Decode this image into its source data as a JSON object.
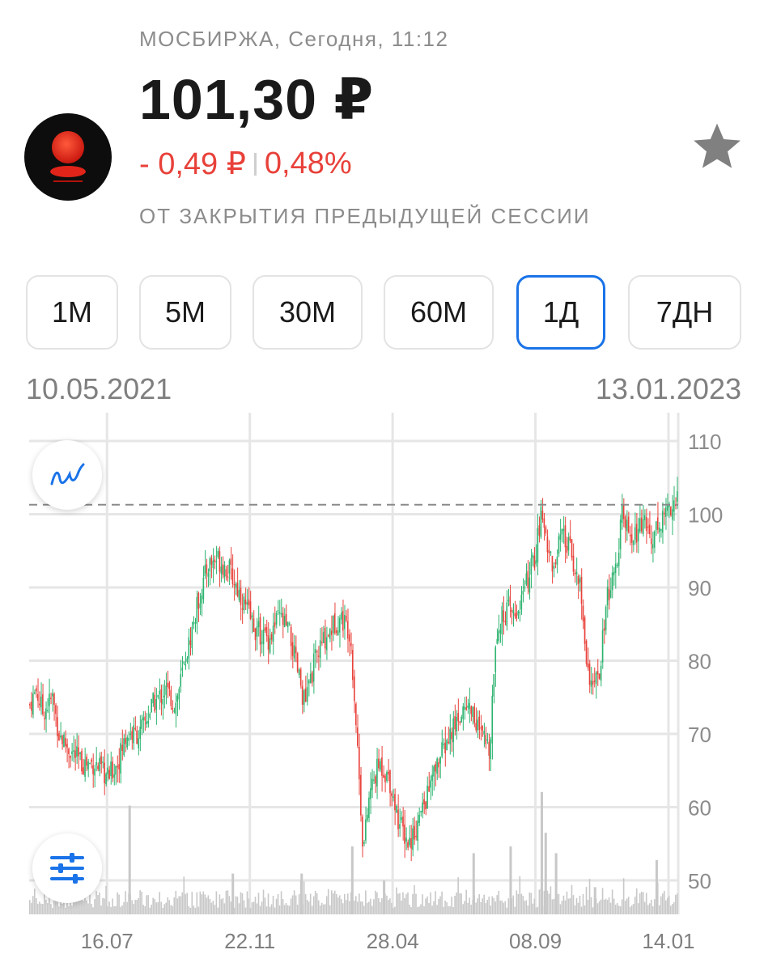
{
  "header": {
    "exchange": "МОСБИРЖА, Сегодня, 11:12",
    "price": "101,30 ₽",
    "change_abs": "- 0,49 ₽",
    "change_pct": "0,48%",
    "session_note": "ОТ ЗАКРЫТИЯ ПРЕДЫДУЩЕЙ СЕССИИ"
  },
  "icons": {
    "logo": "company-logo-icon",
    "favorite": "star-icon",
    "chart_type": "line-chart-icon",
    "settings": "sliders-icon"
  },
  "colors": {
    "up": "#2db36f",
    "down": "#e8413a",
    "accent": "#1a73e8",
    "volume": "#c8c8c8",
    "grid": "#e6e6e6",
    "muted": "#8c8c8c"
  },
  "period_tabs": [
    {
      "label": "1М",
      "active": false
    },
    {
      "label": "5М",
      "active": false
    },
    {
      "label": "30М",
      "active": false
    },
    {
      "label": "60М",
      "active": false
    },
    {
      "label": "1Д",
      "active": true
    },
    {
      "label": "7ДН",
      "active": false
    }
  ],
  "range": {
    "start": "10.05.2021",
    "end": "13.01.2023"
  },
  "chart_data": {
    "type": "candlestick",
    "ylim": [
      45,
      112
    ],
    "y_ticks": [
      110,
      100,
      90,
      80,
      70,
      60,
      50
    ],
    "x_tick_labels": [
      "16.07",
      "22.11",
      "28.04",
      "08.09",
      "14.01"
    ],
    "x_tick_positions": [
      0.12,
      0.34,
      0.56,
      0.78,
      0.985
    ],
    "current_price": 101.3,
    "grid": true,
    "close_path": [
      [
        0.0,
        74
      ],
      [
        0.01,
        76
      ],
      [
        0.02,
        73
      ],
      [
        0.035,
        75
      ],
      [
        0.045,
        70
      ],
      [
        0.06,
        68
      ],
      [
        0.08,
        66
      ],
      [
        0.1,
        66
      ],
      [
        0.12,
        64
      ],
      [
        0.135,
        66
      ],
      [
        0.15,
        70
      ],
      [
        0.17,
        70
      ],
      [
        0.19,
        74
      ],
      [
        0.21,
        76
      ],
      [
        0.225,
        74
      ],
      [
        0.24,
        80
      ],
      [
        0.26,
        88
      ],
      [
        0.275,
        93
      ],
      [
        0.29,
        94
      ],
      [
        0.31,
        92
      ],
      [
        0.33,
        88
      ],
      [
        0.35,
        84
      ],
      [
        0.37,
        83
      ],
      [
        0.385,
        86
      ],
      [
        0.4,
        84
      ],
      [
        0.415,
        78
      ],
      [
        0.425,
        74
      ],
      [
        0.44,
        80
      ],
      [
        0.455,
        83
      ],
      [
        0.47,
        85
      ],
      [
        0.48,
        86
      ],
      [
        0.495,
        84
      ],
      [
        0.505,
        70
      ],
      [
        0.515,
        54
      ],
      [
        0.525,
        62
      ],
      [
        0.54,
        66
      ],
      [
        0.555,
        64
      ],
      [
        0.57,
        58
      ],
      [
        0.585,
        55
      ],
      [
        0.6,
        58
      ],
      [
        0.615,
        62
      ],
      [
        0.63,
        66
      ],
      [
        0.645,
        69
      ],
      [
        0.66,
        72
      ],
      [
        0.675,
        74
      ],
      [
        0.685,
        73
      ],
      [
        0.695,
        70
      ],
      [
        0.71,
        68
      ],
      [
        0.72,
        84
      ],
      [
        0.735,
        87
      ],
      [
        0.75,
        86
      ],
      [
        0.765,
        90
      ],
      [
        0.78,
        94
      ],
      [
        0.79,
        100
      ],
      [
        0.8,
        96
      ],
      [
        0.81,
        92
      ],
      [
        0.82,
        97
      ],
      [
        0.835,
        95
      ],
      [
        0.85,
        90
      ],
      [
        0.86,
        80
      ],
      [
        0.87,
        76
      ],
      [
        0.88,
        78
      ],
      [
        0.89,
        88
      ],
      [
        0.905,
        92
      ],
      [
        0.915,
        100
      ],
      [
        0.93,
        96
      ],
      [
        0.945,
        99
      ],
      [
        0.96,
        97
      ],
      [
        0.975,
        99
      ],
      [
        0.985,
        101
      ],
      [
        1.0,
        102
      ]
    ],
    "volume_spikes": [
      [
        0.153,
        0.32
      ],
      [
        0.312,
        0.12
      ],
      [
        0.418,
        0.12
      ],
      [
        0.496,
        0.2
      ],
      [
        0.545,
        0.1
      ],
      [
        0.683,
        0.18
      ],
      [
        0.74,
        0.2
      ],
      [
        0.788,
        0.36
      ],
      [
        0.794,
        0.24
      ],
      [
        0.81,
        0.18
      ],
      [
        0.87,
        0.08
      ],
      [
        0.965,
        0.16
      ]
    ]
  }
}
